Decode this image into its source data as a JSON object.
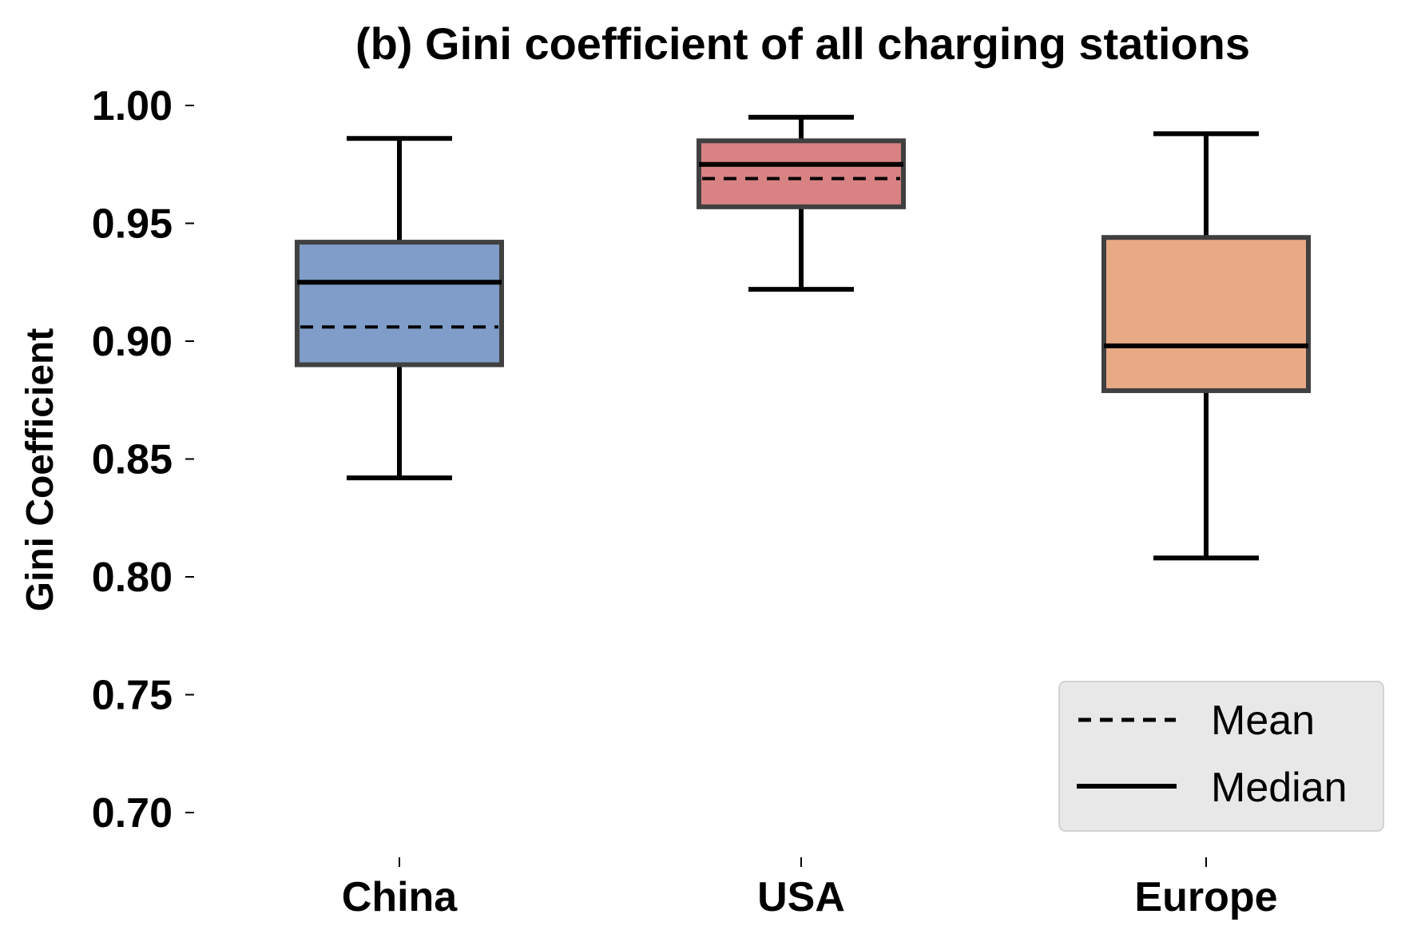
{
  "chart_data": {
    "type": "box",
    "title": "(b) Gini coefficient of all charging stations",
    "xlabel": "",
    "ylabel": "Gini Coefficient",
    "ylim": [
      0.68,
      1.005
    ],
    "yticks": [
      "1.00",
      "0.95",
      "0.90",
      "0.85",
      "0.80",
      "0.75",
      "0.70"
    ],
    "categories": [
      "China",
      "USA",
      "Europe"
    ],
    "boxes": [
      {
        "category": "China",
        "whisker_low": 0.842,
        "q1": 0.89,
        "median": 0.925,
        "q3": 0.942,
        "whisker_high": 0.986,
        "mean": 0.906,
        "color": "#7f9dc8"
      },
      {
        "category": "USA",
        "whisker_low": 0.922,
        "q1": 0.957,
        "median": 0.975,
        "q3": 0.985,
        "whisker_high": 0.995,
        "mean": 0.969,
        "color": "#d88283"
      },
      {
        "category": "Europe",
        "whisker_low": 0.808,
        "q1": 0.879,
        "median": 0.898,
        "q3": 0.944,
        "whisker_high": 0.988,
        "mean": 0.898,
        "color": "#e8a985"
      }
    ],
    "grid": false,
    "legend": {
      "position": "bottom-right",
      "entries": [
        {
          "label": "Mean",
          "style": "dashed"
        },
        {
          "label": "Median",
          "style": "solid"
        }
      ]
    }
  }
}
